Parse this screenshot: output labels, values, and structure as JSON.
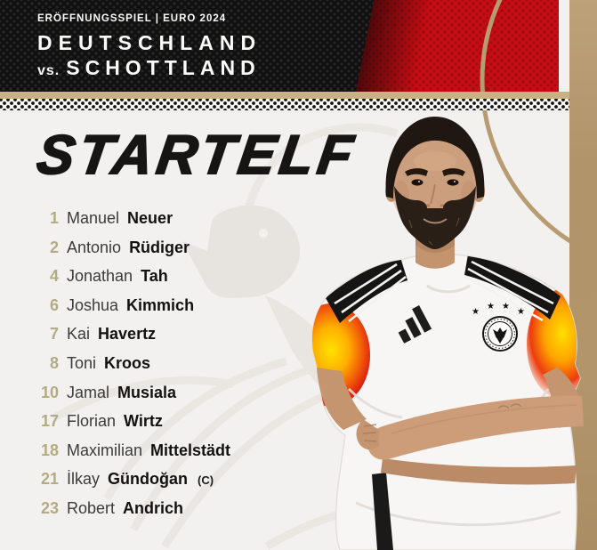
{
  "poster": {
    "eyebrow": "ERÖFFNUNGSSPIEL | EURO 2024",
    "home_team": "DEUTSCHLAND",
    "versus": "vs.",
    "away_team": "SCHOTTLAND",
    "title": "STARTELF",
    "captain_suffix": "(C)"
  },
  "players": [
    {
      "number": "1",
      "first_name": "Manuel",
      "last_name": "Neuer",
      "captain": false
    },
    {
      "number": "2",
      "first_name": "Antonio",
      "last_name": "Rüdiger",
      "captain": false
    },
    {
      "number": "4",
      "first_name": "Jonathan",
      "last_name": "Tah",
      "captain": false
    },
    {
      "number": "6",
      "first_name": "Joshua",
      "last_name": "Kimmich",
      "captain": false
    },
    {
      "number": "7",
      "first_name": "Kai",
      "last_name": "Havertz",
      "captain": false
    },
    {
      "number": "8",
      "first_name": "Toni",
      "last_name": "Kroos",
      "captain": false
    },
    {
      "number": "10",
      "first_name": "Jamal",
      "last_name": "Musiala",
      "captain": false
    },
    {
      "number": "17",
      "first_name": "Florian",
      "last_name": "Wirtz",
      "captain": false
    },
    {
      "number": "18",
      "first_name": "Maximilian",
      "last_name": "Mittelstädt",
      "captain": false
    },
    {
      "number": "21",
      "first_name": "İlkay",
      "last_name": "Gündoğan",
      "captain": true
    },
    {
      "number": "23",
      "first_name": "Robert",
      "last_name": "Andrich",
      "captain": false
    }
  ],
  "colors": {
    "banner_black": "#101010",
    "accent_red": "#c50d13",
    "accent_tan": "#b2946a",
    "number_olive": "#b3ab82",
    "background": "#f3f1ef"
  }
}
